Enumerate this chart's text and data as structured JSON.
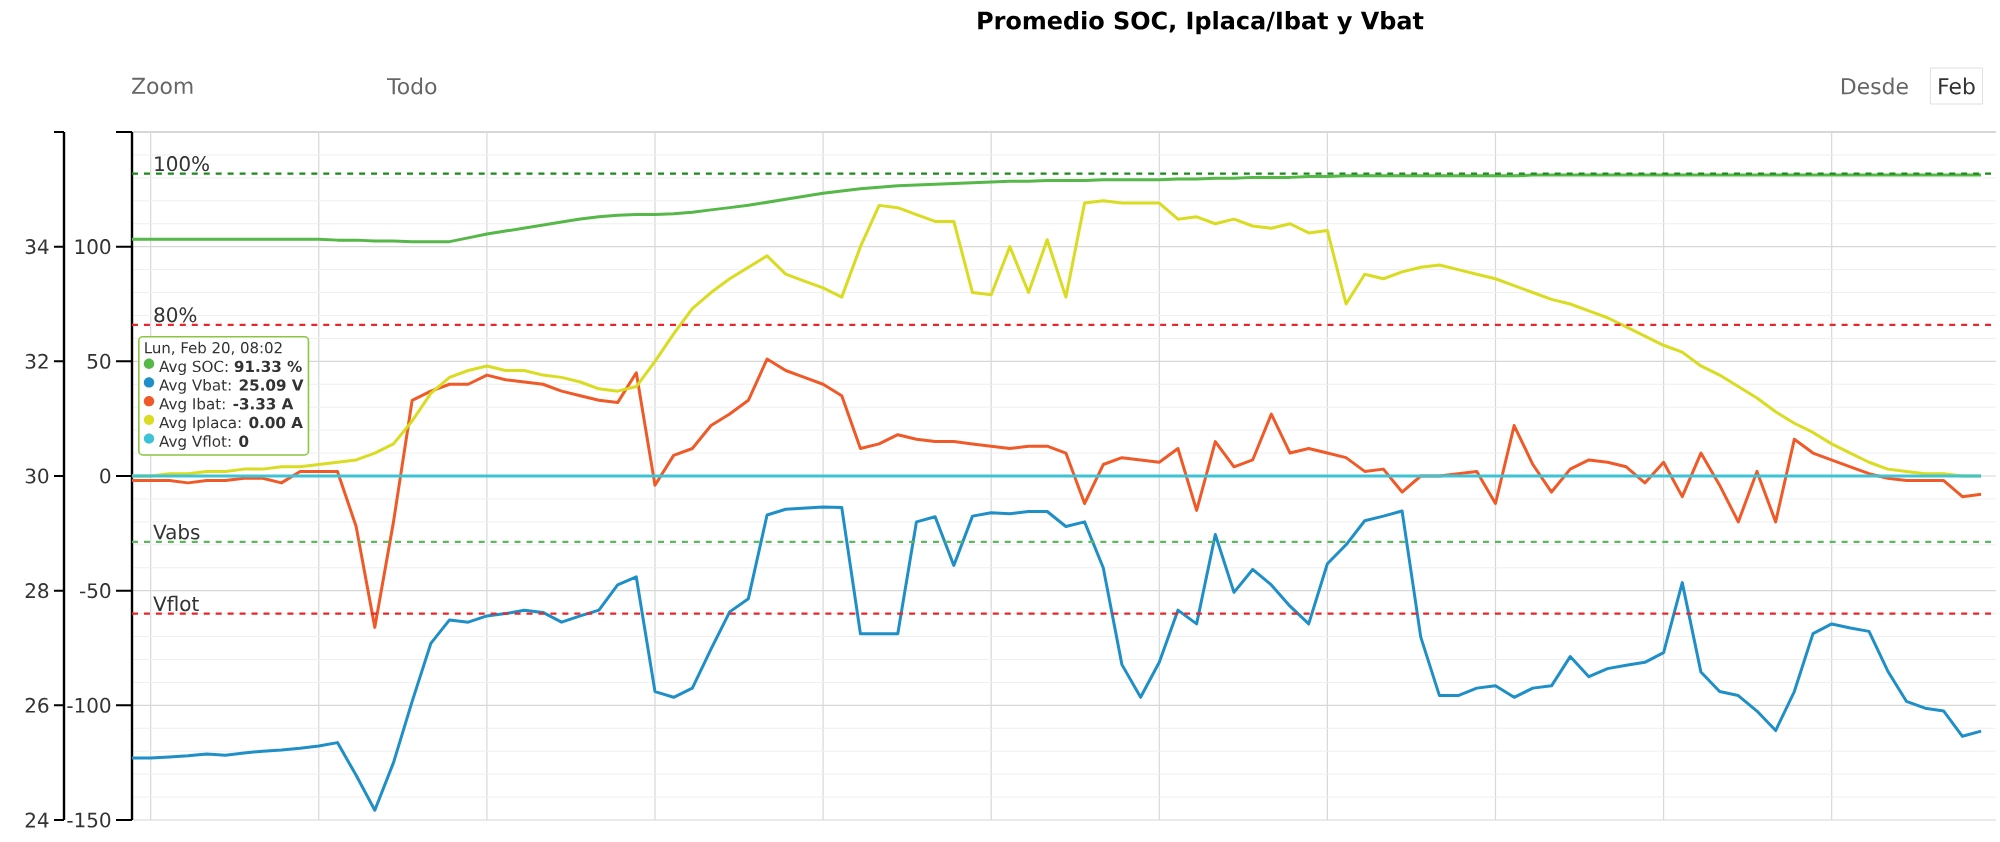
{
  "chart_data": {
    "type": "line",
    "title": "Promedio SOC, Iplaca/Ibat y Vbat",
    "categories": [
      null,
      null,
      null,
      null,
      null,
      null,
      null,
      null,
      null,
      null,
      null,
      null,
      null,
      null,
      null,
      null,
      null,
      null,
      null,
      null,
      null,
      null,
      null,
      null,
      null,
      null,
      null,
      null,
      null,
      null,
      null,
      null,
      null,
      null,
      null,
      null,
      null,
      null,
      null,
      null,
      null,
      null,
      null,
      null,
      null,
      null,
      null,
      null,
      null,
      null,
      null,
      null,
      null,
      null,
      null,
      null,
      null,
      null,
      null,
      null,
      null,
      null,
      null,
      null,
      null,
      null,
      null,
      null,
      null,
      null,
      null,
      null,
      null,
      null,
      null,
      null,
      null,
      null,
      null,
      null,
      null,
      null,
      null,
      null,
      null,
      null,
      null,
      null,
      null,
      null,
      null,
      null,
      null,
      null,
      null,
      null,
      null,
      null,
      null,
      null
    ],
    "series": [
      {
        "name": "Avg SOC",
        "color": "#55b848",
        "axis": "y3",
        "values": [
          91.3,
          91.3,
          91.3,
          91.3,
          91.3,
          91.3,
          91.3,
          91.3,
          91.3,
          91.3,
          91.3,
          91.2,
          91.2,
          91.1,
          91.1,
          91.0,
          91.0,
          91.0,
          91.5,
          92.0,
          92.4,
          92.8,
          93.2,
          93.6,
          94.0,
          94.3,
          94.5,
          94.6,
          94.6,
          94.7,
          94.9,
          95.2,
          95.5,
          95.8,
          96.2,
          96.6,
          97.0,
          97.4,
          97.7,
          98.0,
          98.2,
          98.4,
          98.5,
          98.6,
          98.7,
          98.8,
          98.9,
          99.0,
          99.0,
          99.1,
          99.1,
          99.1,
          99.2,
          99.2,
          99.2,
          99.2,
          99.3,
          99.3,
          99.4,
          99.4,
          99.5,
          99.5,
          99.5,
          99.6,
          99.6,
          99.7,
          99.7,
          99.7,
          99.7,
          99.7,
          99.7,
          99.7,
          99.7,
          99.7,
          99.7,
          99.8,
          99.8,
          99.8,
          99.8,
          99.8,
          99.8,
          99.8,
          99.8,
          99.8,
          99.8,
          99.8,
          99.8,
          99.8,
          99.8,
          99.8,
          99.8,
          99.8,
          99.8,
          99.8,
          99.8,
          99.8,
          99.8,
          99.8,
          99.8,
          99.8
        ]
      },
      {
        "name": "Avg Vbat",
        "color": "#1f8fc8",
        "axis": "y2",
        "values": [
          25.08,
          25.08,
          25.1,
          25.12,
          25.15,
          25.13,
          25.17,
          25.2,
          25.22,
          25.25,
          25.29,
          25.35,
          24.78,
          24.17,
          25.0,
          26.07,
          27.08,
          27.49,
          27.45,
          27.56,
          27.6,
          27.66,
          27.62,
          27.45,
          27.56,
          27.66,
          28.1,
          28.24,
          26.24,
          26.14,
          26.3,
          26.98,
          27.63,
          27.86,
          29.32,
          29.42,
          29.44,
          29.46,
          29.45,
          27.25,
          27.25,
          27.25,
          29.2,
          29.29,
          28.44,
          29.3,
          29.36,
          29.34,
          29.38,
          29.38,
          29.12,
          29.2,
          28.4,
          26.71,
          26.14,
          26.75,
          27.66,
          27.42,
          28.98,
          27.97,
          28.37,
          28.1,
          27.73,
          27.42,
          28.47,
          28.8,
          29.22,
          29.3,
          29.39,
          27.19,
          26.17,
          26.17,
          26.3,
          26.34,
          26.14,
          26.3,
          26.34,
          26.85,
          26.5,
          26.64,
          26.7,
          26.75,
          26.92,
          28.14,
          26.58,
          26.24,
          26.17,
          25.9,
          25.56,
          26.24,
          27.25,
          27.42,
          27.35,
          27.29,
          26.6,
          26.07,
          25.95,
          25.9,
          25.46,
          25.55
        ]
      },
      {
        "name": "Avg Ibat",
        "color": "#f05a28",
        "axis": "y",
        "values": [
          -2,
          -2,
          -2,
          -3,
          -2,
          -2,
          -1,
          -1,
          -3,
          2,
          2,
          2,
          -22,
          -66,
          -20,
          33,
          37,
          40,
          40,
          44,
          42,
          41,
          40,
          37,
          35,
          33,
          32,
          45,
          -4,
          9,
          12,
          22,
          27,
          33,
          51,
          46,
          43,
          40,
          35,
          12,
          14,
          18,
          16,
          15,
          15,
          14,
          13,
          12,
          13,
          13,
          10,
          -12,
          5,
          8,
          7,
          6,
          12,
          -15,
          15,
          4,
          7,
          27,
          10,
          12,
          10,
          8,
          2,
          3,
          -7,
          0,
          0,
          1,
          2,
          -12,
          22,
          5,
          -7,
          3,
          7,
          6,
          4,
          -3,
          6,
          -9,
          10,
          -4,
          -20,
          2,
          -20,
          16,
          10,
          7,
          4,
          1,
          -1,
          -2,
          -2,
          -2,
          -9,
          -8
        ]
      },
      {
        "name": "Avg Iplaca",
        "color": "#d9dc21",
        "axis": "y",
        "values": [
          0,
          0,
          1,
          1,
          2,
          2,
          3,
          3,
          4,
          4,
          5,
          6,
          7,
          10,
          14,
          24,
          36,
          43,
          46,
          48,
          46,
          46,
          44,
          43,
          41,
          38,
          37,
          39,
          50,
          62,
          73,
          80,
          86,
          91,
          96,
          88,
          85,
          82,
          78,
          100,
          118,
          117,
          114,
          111,
          111,
          80,
          79,
          100,
          80,
          103,
          78,
          119,
          120,
          119,
          119,
          119,
          112,
          113,
          110,
          112,
          109,
          108,
          110,
          106,
          107,
          75,
          88,
          86,
          89,
          91,
          92,
          90,
          88,
          86,
          83,
          80,
          77,
          75,
          72,
          69,
          65,
          61,
          57,
          54,
          48,
          44,
          39,
          34,
          28,
          23,
          19,
          14,
          10,
          6,
          3,
          2,
          1,
          1,
          0,
          0
        ]
      },
      {
        "name": "Avg Vflot",
        "color": "#3ec3d6",
        "axis": "y",
        "values": [
          0,
          0,
          0,
          0,
          0,
          0,
          0,
          0,
          0,
          0,
          0,
          0,
          0,
          0,
          0,
          0,
          0,
          0,
          0,
          0,
          0,
          0,
          0,
          0,
          0,
          0,
          0,
          0,
          0,
          0,
          0,
          0,
          0,
          0,
          0,
          0,
          0,
          0,
          0,
          0,
          0,
          0,
          0,
          0,
          0,
          0,
          0,
          0,
          0,
          0,
          0,
          0,
          0,
          0,
          0,
          0,
          0,
          0,
          0,
          0,
          0,
          0,
          0,
          0,
          0,
          0,
          0,
          0,
          0,
          0,
          0,
          0,
          0,
          0,
          0,
          0,
          0,
          0,
          0,
          0,
          0,
          0,
          0,
          0,
          0,
          0,
          0,
          0,
          0,
          0,
          0,
          0,
          0,
          0,
          0,
          0,
          0,
          0,
          0,
          0
        ]
      }
    ],
    "ylim": [
      -150,
      150
    ],
    "yticks": [
      -150,
      -100,
      -50,
      0,
      50,
      100,
      {
        "value": 150,
        "label": null
      }
    ],
    "y2lim": [
      24,
      36
    ],
    "y2ticks": [
      24,
      26,
      28,
      30,
      32,
      34,
      {
        "value": 36,
        "label": null
      }
    ],
    "y3lim": [
      14.5,
      105.5
    ],
    "y3ticks": [
      {
        "value": 80,
        "label": "80%"
      },
      {
        "value": 100,
        "label": "100%"
      }
    ],
    "ref_lines": [
      {
        "axis": "y3",
        "value": 100,
        "color": "#1a8a1a",
        "line_style": "dashed"
      },
      {
        "axis": "y3",
        "value": 80,
        "color": "#e8262b",
        "line_style": "dashed"
      },
      {
        "axis": "y2",
        "value": 28.85,
        "label": "Vabs",
        "color": "#5cb85c",
        "line_style": "dashed"
      },
      {
        "axis": "y2",
        "value": 27.6,
        "label": "Vflot",
        "color": "#e8262b",
        "line_style": "dashed"
      }
    ],
    "annotations": [
      "Zoom",
      "Todo",
      "Desde",
      "Feb",
      "Lun, Feb 20, 08:02",
      ": **91.33 %**",
      ": **25.09 V**",
      ": **-3.33 A**",
      ": **0.00 A**",
      ": **0**"
    ],
    "grid": true,
    "legend": "left"
  }
}
